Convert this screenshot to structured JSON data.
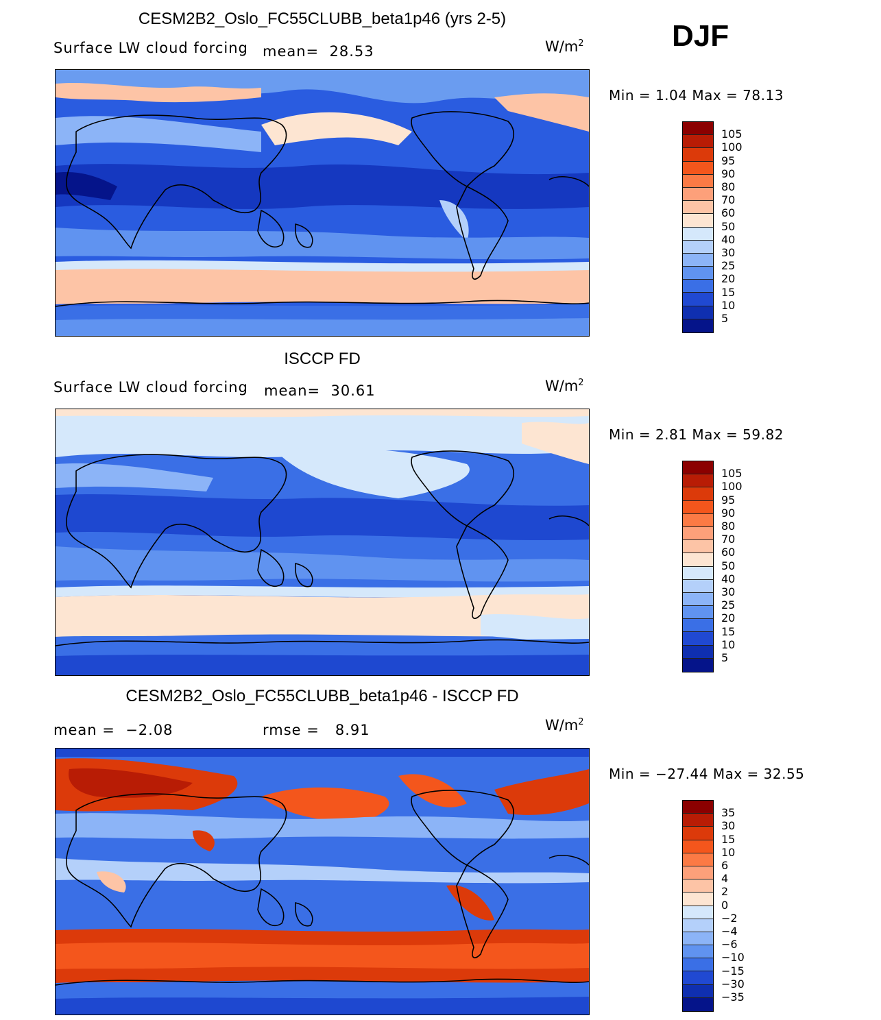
{
  "season": "DJF",
  "panels": [
    {
      "title": "CESM2B2_Oslo_FC55CLUBB_beta1p46 (yrs 2-5)",
      "left_label": "Surface LW cloud forcing",
      "stat_label": "mean=",
      "stat_value": "28.53",
      "units_base": "W/m",
      "units_sup": "2",
      "min_max_text": "Min =    1.04 Max =   78.13",
      "colorbar_labels": [
        "105",
        "100",
        "95",
        "90",
        "80",
        "70",
        "60",
        "50",
        "40",
        "30",
        "25",
        "20",
        "15",
        "10",
        "5"
      ],
      "colorbar_colors": [
        "#8b0000",
        "#b81c05",
        "#dc3a0a",
        "#f4561c",
        "#fb7a45",
        "#fda07a",
        "#fdc4a6",
        "#fde5d2",
        "#d5e8fb",
        "#b4d0fa",
        "#8cb4f7",
        "#6093f0",
        "#3a6fe6",
        "#2049d2",
        "#0f2fb0",
        "#05148a"
      ]
    },
    {
      "title": "ISCCP FD",
      "left_label": "Surface LW cloud forcing",
      "stat_label": "mean=",
      "stat_value": "30.61",
      "units_base": "W/m",
      "units_sup": "2",
      "min_max_text": "Min =    2.81 Max =   59.82",
      "colorbar_labels": [
        "105",
        "100",
        "95",
        "90",
        "80",
        "70",
        "60",
        "50",
        "40",
        "30",
        "25",
        "20",
        "15",
        "10",
        "5"
      ],
      "colorbar_colors": [
        "#8b0000",
        "#b81c05",
        "#dc3a0a",
        "#f4561c",
        "#fb7a45",
        "#fda07a",
        "#fdc4a6",
        "#fde5d2",
        "#d5e8fb",
        "#b4d0fa",
        "#8cb4f7",
        "#6093f0",
        "#3a6fe6",
        "#2049d2",
        "#0f2fb0",
        "#05148a"
      ]
    },
    {
      "title": "CESM2B2_Oslo_FC55CLUBB_beta1p46 - ISCCP FD",
      "mean_label": "mean =",
      "mean_value": "−2.08",
      "rmse_label": "rmse =",
      "rmse_value": "8.91",
      "units_base": "W/m",
      "units_sup": "2",
      "min_max_text": "Min = −27.44 Max =   32.55",
      "colorbar_labels": [
        "35",
        "30",
        "15",
        "10",
        "6",
        "4",
        "2",
        "0",
        "−2",
        "−4",
        "−6",
        "−10",
        "−15",
        "−30",
        "−35"
      ],
      "colorbar_colors": [
        "#8b0000",
        "#b81c05",
        "#dc3a0a",
        "#f4561c",
        "#fb7a45",
        "#fda07a",
        "#fdc4a6",
        "#fde5d2",
        "#d5e8fb",
        "#b4d0fa",
        "#8cb4f7",
        "#6093f0",
        "#3a6fe6",
        "#2049d2",
        "#0f2fb0",
        "#05148a"
      ]
    }
  ]
}
